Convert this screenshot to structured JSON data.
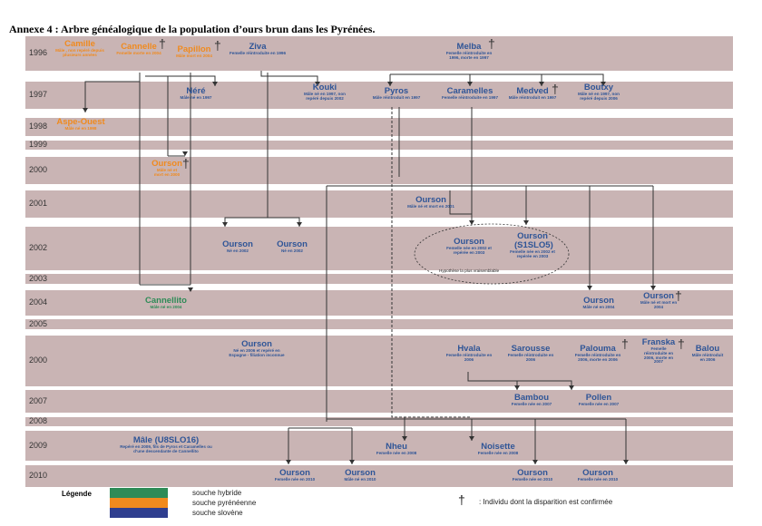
{
  "title": "Annexe 4 : Arbre généalogique de la population d’ours brun dans les Pyrénées.",
  "colors": {
    "band": "#C9B4B4",
    "hybrid": "#2E8B57",
    "pyrenean": "#F08A1E",
    "slovene": "#2F3E8F",
    "line": "#333333"
  },
  "years": [
    "1996",
    "1997",
    "1998",
    "1999",
    "2000",
    "2001",
    "2002",
    "2003",
    "2004",
    "2005",
    "2000",
    "2007",
    "2008",
    "2009",
    "2010"
  ],
  "bears": {
    "camille": {
      "name": "Camille",
      "desc": "Mâle , non repéré depuis plusieurs années"
    },
    "cannelle": {
      "name": "Cannelle",
      "desc": "Femelle morte en 2004"
    },
    "papillon": {
      "name": "Papillon",
      "desc": "Mâle mort en 2004"
    },
    "ziva": {
      "name": "Ziva",
      "desc": "Femelle réintroduite en 1996"
    },
    "melba": {
      "name": "Melba",
      "desc": "Femelle réintroduite en 1996, morte en 1997"
    },
    "nere": {
      "name": "Néré",
      "desc": "Mâle né en 1997"
    },
    "kouki": {
      "name": "Kouki",
      "desc": "Mâle né en 1997, non repéré depuis 2002"
    },
    "pyros": {
      "name": "Pyros",
      "desc": "Mâle réintroduit en 1997"
    },
    "caramelles": {
      "name": "Caramelles",
      "desc": "Femelle réintroduite en 1997"
    },
    "medved": {
      "name": "Medved",
      "desc": "Mâle réintroduit en 1997"
    },
    "boutxy": {
      "name": "Boutxy",
      "desc": "Mâle né en 1997, non repéré depuis 2006"
    },
    "aspe": {
      "name": "Aspe-Ouest",
      "desc": "Mâle né en 1998"
    },
    "ourson2000": {
      "name": "Ourson",
      "desc": "Mâle né et mort en 2000"
    },
    "ourson2001": {
      "name": "Ourson",
      "desc": "Mâle né et mort en 2001"
    },
    "ourson2002a": {
      "name": "Ourson",
      "desc": "Né en 2002"
    },
    "ourson2002b": {
      "name": "Ourson",
      "desc": "Né en 2002"
    },
    "ourson2002c": {
      "name": "Ourson",
      "desc": "Femelle née en 2002 et repérée en 2003"
    },
    "ourson2002d": {
      "name": "Ourson (S1SLO5)",
      "desc": "Femelle née en 2002 et repérée en 2003"
    },
    "cannellito": {
      "name": "Cannellito",
      "desc": "Mâle né en 2004"
    },
    "ourson2004a": {
      "name": "Ourson",
      "desc": "Mâle né en 2004"
    },
    "ourson2004b": {
      "name": "Ourson",
      "desc": "Mâle né et mort en 2004"
    },
    "ourson2006": {
      "name": "Ourson",
      "desc": "Né en 2006 et repéré en Espagne - filiation inconnue"
    },
    "hvala": {
      "name": "Hvala",
      "desc": "Femelle réintroduite en 2006"
    },
    "sarousse": {
      "name": "Sarousse",
      "desc": "Femelle réintroduite en 2006"
    },
    "palouma": {
      "name": "Palouma",
      "desc": "Femelle réintroduite en 2006, morte en 2006"
    },
    "franska": {
      "name": "Franska",
      "desc": "Femelle réintroduite en 2006, morte en 2007"
    },
    "balou": {
      "name": "Balou",
      "desc": "Mâle réintroduit en 2006"
    },
    "bambou": {
      "name": "Bambou",
      "desc": "Femelle née en 2007"
    },
    "pollen": {
      "name": "Pollen",
      "desc": "Femelle née en 2007"
    },
    "male": {
      "name": "Mâle (U8SLO16)",
      "desc": "Repéré en 2009, fils de Pyros et Caramelles ou d’une descendante de Cannellito"
    },
    "nheu": {
      "name": "Nheu",
      "desc": "Femelle née en 2008"
    },
    "noisette": {
      "name": "Noisette",
      "desc": "Femelle née en 2008"
    },
    "ourson2010a": {
      "name": "Ourson",
      "desc": "Femelle née en 2010"
    },
    "ourson2010b": {
      "name": "Ourson",
      "desc": "Mâle né en 2010"
    },
    "ourson2010c": {
      "name": "Ourson",
      "desc": "Femelle née en 2010"
    },
    "ourson2010d": {
      "name": "Ourson",
      "desc": "Femelle née en 2010"
    }
  },
  "hypothesis": "Hypothèse la plus vraisemblable",
  "legend": {
    "title": "Légende",
    "hybrid": "souche hybride",
    "pyrenean": "souche pyrénéenne",
    "slovene": "souche slovène",
    "cross_label": ": Individu dont la disparition est confirmée"
  }
}
